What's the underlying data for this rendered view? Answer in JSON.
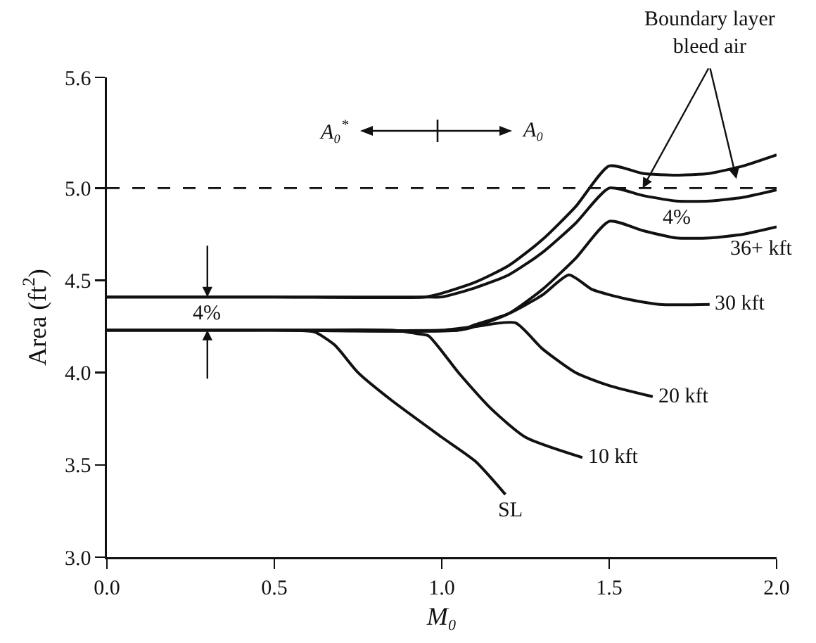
{
  "chart_data": {
    "type": "line",
    "xlabel": "M₀",
    "ylabel": "Area (ft$^{2}$)",
    "xlim": [
      0,
      2
    ],
    "xticks": [
      {
        "value": 0,
        "label": "0.0"
      },
      0.5,
      {
        "value": 1,
        "label": "1.0"
      },
      1.5,
      {
        "value": 2,
        "label": "2.0"
      }
    ],
    "ylim": [
      3,
      5.6
    ],
    "yticks": [
      {
        "value": 3,
        "label": "3.0"
      },
      3.5,
      {
        "value": 4,
        "label": "4.0"
      },
      4.5,
      {
        "value": 5,
        "label": "5.0"
      },
      5.6
    ],
    "grid": false,
    "legend": false,
    "marker": "none",
    "line_style": "solid",
    "series": [
      {
        "color": "#111111",
        "x": [
          0,
          0.5,
          0.95,
          1.0,
          1.1,
          1.2,
          1.3,
          1.4,
          1.5,
          1.6,
          1.7,
          1.8,
          1.9,
          2.0
        ],
        "values": [
          4.41,
          4.41,
          4.41,
          4.43,
          4.49,
          4.58,
          4.72,
          4.9,
          5.12,
          5.08,
          5.07,
          5.08,
          5.12,
          5.18
        ]
      },
      {
        "color": "#111111",
        "x": [
          0,
          0.5,
          0.95,
          1.0,
          1.1,
          1.2,
          1.3,
          1.4,
          1.5,
          1.6,
          1.7,
          1.8,
          1.9,
          2.0
        ],
        "values": [
          4.41,
          4.41,
          4.41,
          4.41,
          4.46,
          4.53,
          4.65,
          4.81,
          5.0,
          4.96,
          4.93,
          4.93,
          4.95,
          4.99
        ]
      },
      {
        "name": "36+ kft",
        "color": "#111111",
        "x": [
          0,
          0.5,
          1.05,
          1.1,
          1.2,
          1.3,
          1.4,
          1.5,
          1.6,
          1.7,
          1.8,
          1.9,
          2.0
        ],
        "values": [
          4.23,
          4.23,
          4.23,
          4.25,
          4.32,
          4.45,
          4.62,
          4.82,
          4.77,
          4.73,
          4.73,
          4.75,
          4.79
        ]
      },
      {
        "name": "30 kft",
        "color": "#111111",
        "x": [
          0,
          0.5,
          1.05,
          1.1,
          1.2,
          1.3,
          1.38,
          1.45,
          1.55,
          1.65,
          1.8
        ],
        "values": [
          4.23,
          4.23,
          4.23,
          4.26,
          4.32,
          4.42,
          4.53,
          4.45,
          4.4,
          4.37,
          4.37
        ]
      },
      {
        "name": "20 kft",
        "color": "#111111",
        "x": [
          0,
          0.5,
          1.0,
          1.1,
          1.22,
          1.3,
          1.4,
          1.5,
          1.63
        ],
        "values": [
          4.23,
          4.23,
          4.23,
          4.25,
          4.27,
          4.13,
          4.0,
          3.93,
          3.87
        ]
      },
      {
        "name": "10 kft",
        "color": "#111111",
        "x": [
          0,
          0.5,
          0.85,
          0.93,
          0.96,
          1.05,
          1.15,
          1.25,
          1.42
        ],
        "values": [
          4.23,
          4.23,
          4.23,
          4.21,
          4.2,
          4.0,
          3.8,
          3.65,
          3.54
        ]
      },
      {
        "name": "SL",
        "color": "#111111",
        "x": [
          0,
          0.3,
          0.55,
          0.62,
          0.68,
          0.75,
          0.85,
          1.0,
          1.1,
          1.19
        ],
        "values": [
          4.23,
          4.23,
          4.23,
          4.22,
          4.15,
          4.0,
          3.85,
          3.65,
          3.52,
          3.34
        ]
      }
    ],
    "ref_lines": [
      {
        "axis": "y",
        "value": 5.0,
        "color": "#111111",
        "line_style": "dashed"
      }
    ],
    "annotations": [
      "A₀$^{*}$",
      "A₀",
      "4%",
      "4%",
      {
        "text": "Boundary layer\nbleed air",
        "x": 1.6,
        "y": 5.0
      }
    ]
  }
}
